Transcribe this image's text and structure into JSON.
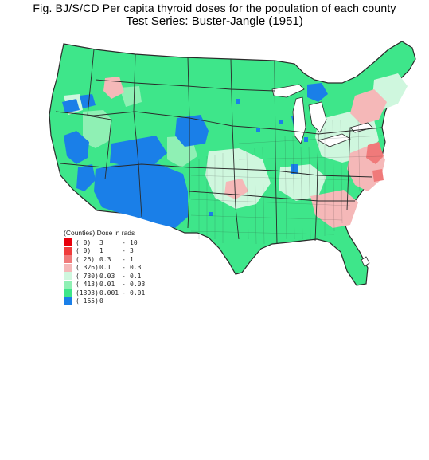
{
  "title_line1": "Fig. BJ/S/CD   Per capita thyroid doses for the population of each county",
  "title_line2": "Test Series:   Buster-Jangle  (1951)",
  "legend": {
    "title": "(Counties) Dose in rads",
    "items": [
      {
        "count": "(   0)",
        "low": "3",
        "dash": "-",
        "high": "10",
        "color": "#e8000b"
      },
      {
        "count": "(   0)",
        "low": "1",
        "dash": "-",
        "high": "3",
        "color": "#f03c3c"
      },
      {
        "count": "(  26)",
        "low": "0.3",
        "dash": "-",
        "high": "1",
        "color": "#f07a7a"
      },
      {
        "count": "( 326)",
        "low": "0.1",
        "dash": "-",
        "high": "0.3",
        "color": "#f5b8b8"
      },
      {
        "count": "( 730)",
        "low": "0.03",
        "dash": "-",
        "high": "0.1",
        "color": "#cff7de"
      },
      {
        "count": "( 413)",
        "low": "0.01",
        "dash": "-",
        "high": "0.03",
        "color": "#8ff0b4"
      },
      {
        "count": "(1393)",
        "low": "0.001",
        "dash": "-",
        "high": "0.01",
        "color": "#3ee68a"
      },
      {
        "count": "( 165)",
        "low": "0",
        "dash": "",
        "high": "",
        "color": "#1a7fe8"
      }
    ]
  },
  "map_colors": {
    "blue": "#1a7fe8",
    "green": "#3ee68a",
    "light_green": "#8ff0b4",
    "pale_green": "#cff7de",
    "pink": "#f5b8b8",
    "salmon": "#f07a7a",
    "border": "#2a2a2a"
  }
}
